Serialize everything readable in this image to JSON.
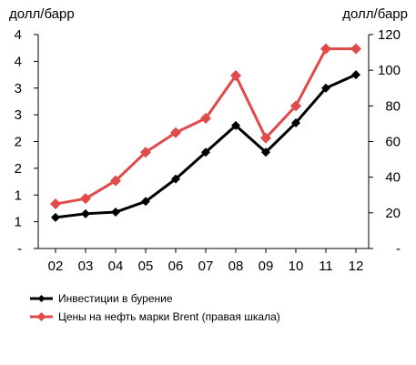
{
  "chart_data": {
    "type": "line",
    "left_unit": "долл/барр",
    "right_unit": "долл/барр",
    "categories": [
      "02",
      "03",
      "04",
      "05",
      "06",
      "07",
      "08",
      "09",
      "10",
      "11",
      "12"
    ],
    "left_axis": {
      "ylim": [
        0,
        4
      ],
      "tick_values": [
        0,
        0.5,
        1,
        1.5,
        2,
        2.5,
        3,
        3.5,
        4
      ],
      "tick_labels": [
        "-",
        "1",
        "1",
        "2",
        "2",
        "3",
        "3",
        "4",
        "4"
      ]
    },
    "right_axis": {
      "ylim": [
        0,
        120
      ],
      "tick_values": [
        0,
        20,
        40,
        60,
        80,
        100,
        120
      ],
      "tick_labels": [
        "-",
        "20",
        "40",
        "60",
        "80",
        "100",
        "120"
      ]
    },
    "grid": false,
    "legend_position": "bottom-left",
    "series": [
      {
        "name": "Инвестиции в бурение",
        "axis": "left",
        "color": "#000000",
        "marker": "diamond",
        "values": [
          0.58,
          0.65,
          0.68,
          0.88,
          1.3,
          1.8,
          2.3,
          1.8,
          2.35,
          3.0,
          3.25
        ]
      },
      {
        "name": "Цены на нефть марки Brent (правая шкала)",
        "axis": "right",
        "color": "#e04a4a",
        "marker": "diamond",
        "values": [
          25,
          28,
          38,
          54,
          65,
          73,
          97,
          62,
          80,
          112,
          112
        ]
      }
    ]
  }
}
